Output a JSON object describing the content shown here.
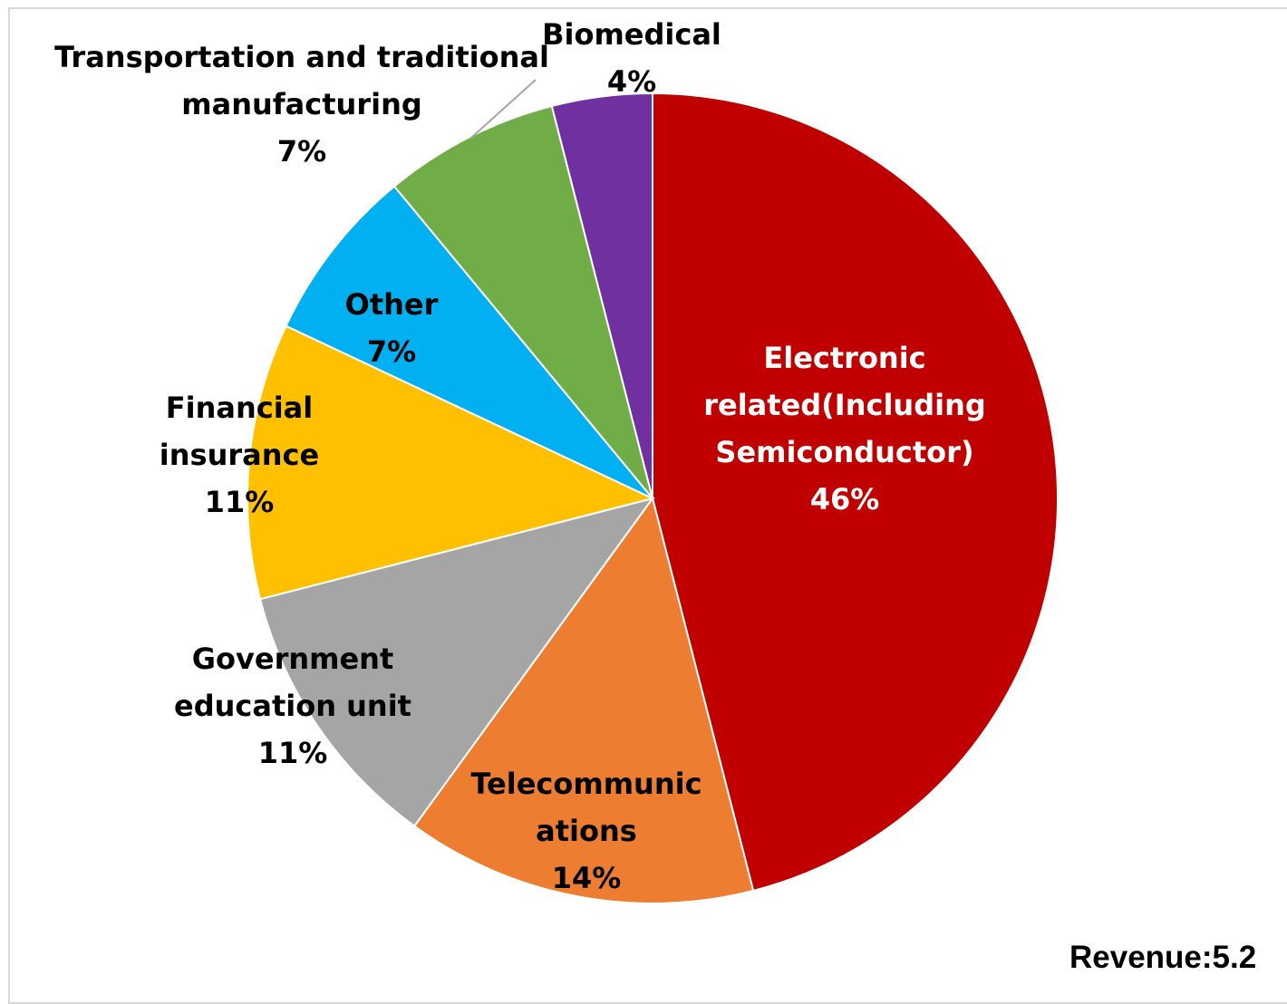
{
  "chart_data": {
    "type": "pie",
    "start_angle_deg": 0,
    "direction": "clockwise",
    "slices": [
      {
        "label_lines": [
          "Electronic",
          "related(Including",
          "Semiconductor)",
          "46%"
        ],
        "value": 46,
        "color": "#C00000",
        "text_color": "#ffffff"
      },
      {
        "label_lines": [
          "Telecommunic",
          "ations",
          "14%"
        ],
        "value": 14,
        "color": "#ED7D31",
        "text_color": "#000000"
      },
      {
        "label_lines": [
          "Government",
          "education unit",
          "11%"
        ],
        "value": 11,
        "color": "#A5A5A5",
        "text_color": "#000000"
      },
      {
        "label_lines": [
          "Financial",
          "insurance",
          "11%"
        ],
        "value": 11,
        "color": "#FFC000",
        "text_color": "#000000"
      },
      {
        "label_lines": [
          "Other",
          "7%"
        ],
        "value": 7,
        "color": "#00B0F0",
        "text_color": "#000000"
      },
      {
        "label_lines": [
          "Transportation and traditional",
          "manufacturing",
          "7%"
        ],
        "value": 7,
        "color": "#70AD47",
        "text_color": "#000000"
      },
      {
        "label_lines": [
          "Biomedical",
          "4%"
        ],
        "value": 4,
        "color": "#7030A0",
        "text_color": "#000000"
      }
    ]
  },
  "footer": {
    "revenue_text": "Revenue:5.2"
  }
}
